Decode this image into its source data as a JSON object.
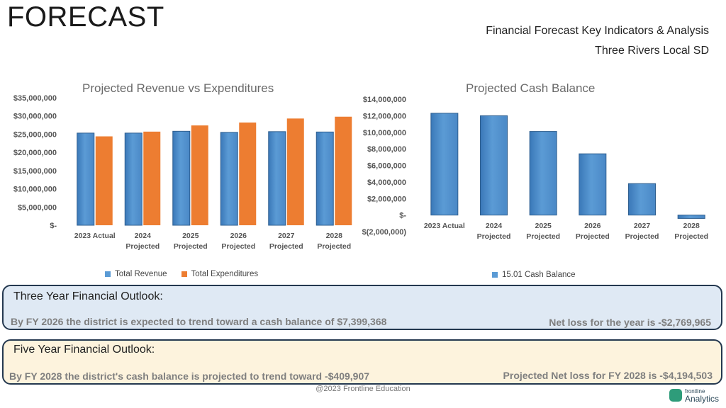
{
  "header": {
    "title": "FORECAST",
    "subtitle_line1": "Financial Forecast Key Indicators & Analysis",
    "subtitle_line2": "Three Rivers Local SD"
  },
  "colors": {
    "revenue": "#5b9bd5",
    "expenditures": "#ed7d31",
    "cash": "#5b9bd5",
    "box_border": "#24384f"
  },
  "chart_data": [
    {
      "type": "bar",
      "title": "Projected Revenue vs Expenditures",
      "categories": [
        [
          "2023 Actual"
        ],
        [
          "2024",
          "Projected"
        ],
        [
          "2025",
          "Projected"
        ],
        [
          "2026",
          "Projected"
        ],
        [
          "2027",
          "Projected"
        ],
        [
          "2028",
          "Projected"
        ]
      ],
      "series": [
        {
          "name": "Total Revenue",
          "values": [
            25300000,
            25300000,
            25800000,
            25500000,
            25700000,
            25600000
          ]
        },
        {
          "name": "Total Expenditures",
          "values": [
            24400000,
            25700000,
            27400000,
            28200000,
            29300000,
            29800000
          ]
        }
      ],
      "ylim": [
        0,
        35000000
      ],
      "yticks": [
        0,
        5000000,
        10000000,
        15000000,
        20000000,
        25000000,
        30000000,
        35000000
      ],
      "ytick_labels": [
        "$-",
        "$5,000,000",
        "$10,000,000",
        "$15,000,000",
        "$20,000,000",
        "$25,000,000",
        "$30,000,000",
        "$35,000,000"
      ],
      "legend_position": "bottom",
      "grid": false
    },
    {
      "type": "bar",
      "title": "Projected Cash Balance",
      "categories": [
        [
          "2023 Actual"
        ],
        [
          "2024",
          "Projected"
        ],
        [
          "2025",
          "Projected"
        ],
        [
          "2026",
          "Projected"
        ],
        [
          "2027",
          "Projected"
        ],
        [
          "2028",
          "Projected"
        ]
      ],
      "series": [
        {
          "name": "15.01 Cash Balance",
          "values": [
            12300000,
            12000000,
            10100000,
            7399368,
            3800000,
            -409907
          ]
        }
      ],
      "ylim": [
        -2000000,
        14000000
      ],
      "yticks": [
        -2000000,
        0,
        2000000,
        4000000,
        6000000,
        8000000,
        10000000,
        12000000,
        14000000
      ],
      "ytick_labels": [
        "$(2,000,000)",
        "$-",
        "$2,000,000",
        "$4,000,000",
        "$6,000,000",
        "$8,000,000",
        "$10,000,000",
        "$12,000,000",
        "$14,000,000"
      ],
      "legend_position": "bottom",
      "grid": false
    }
  ],
  "outlook3": {
    "heading": "Three Year Financial Outlook:",
    "left": "By FY 2026 the district is expected to trend toward a cash balance of $7,399,368",
    "right": "Net loss for the year is -$2,769,965"
  },
  "outlook5": {
    "heading": "Five Year Financial Outlook:",
    "left": "By FY 2028 the district's cash balance is projected to trend toward -$409,907",
    "right": "Projected Net loss for FY 2028 is -$4,194,503"
  },
  "footer": {
    "copyright": "@2023 Frontline Education",
    "logo_line1": "frontline",
    "logo_line2": "Analytics"
  }
}
